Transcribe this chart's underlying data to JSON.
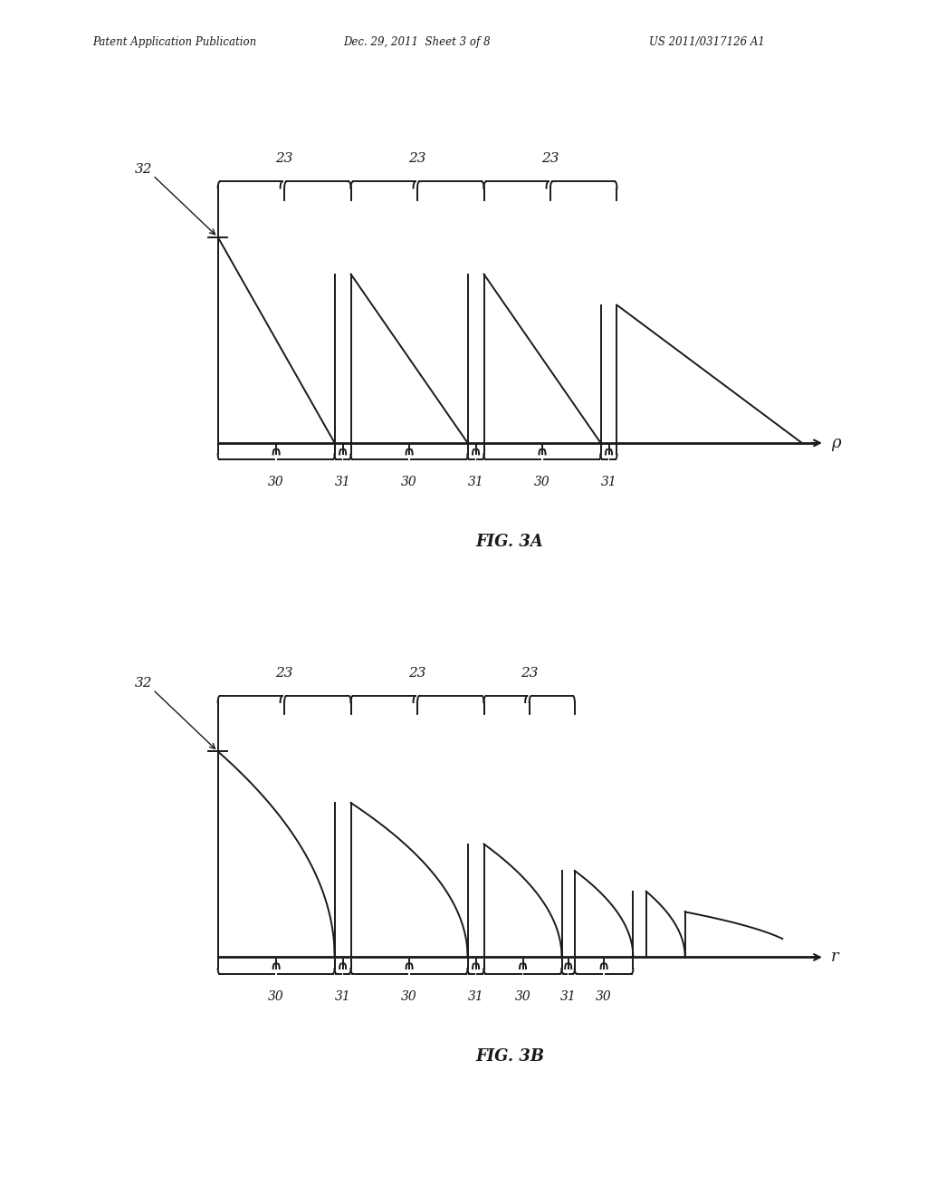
{
  "header_left": "Patent Application Publication",
  "header_mid": "Dec. 29, 2011  Sheet 3 of 8",
  "header_right": "US 2011/0317126 A1",
  "fig3a_label": "FIG. 3A",
  "fig3b_label": "FIG. 3B",
  "label_23": "23",
  "label_30": "30",
  "label_31": "31",
  "label_32": "32",
  "label_p": "ρ",
  "label_r": "r",
  "bg_color": "#ffffff",
  "line_color": "#1a1a1a",
  "text_color": "#1a1a1a"
}
